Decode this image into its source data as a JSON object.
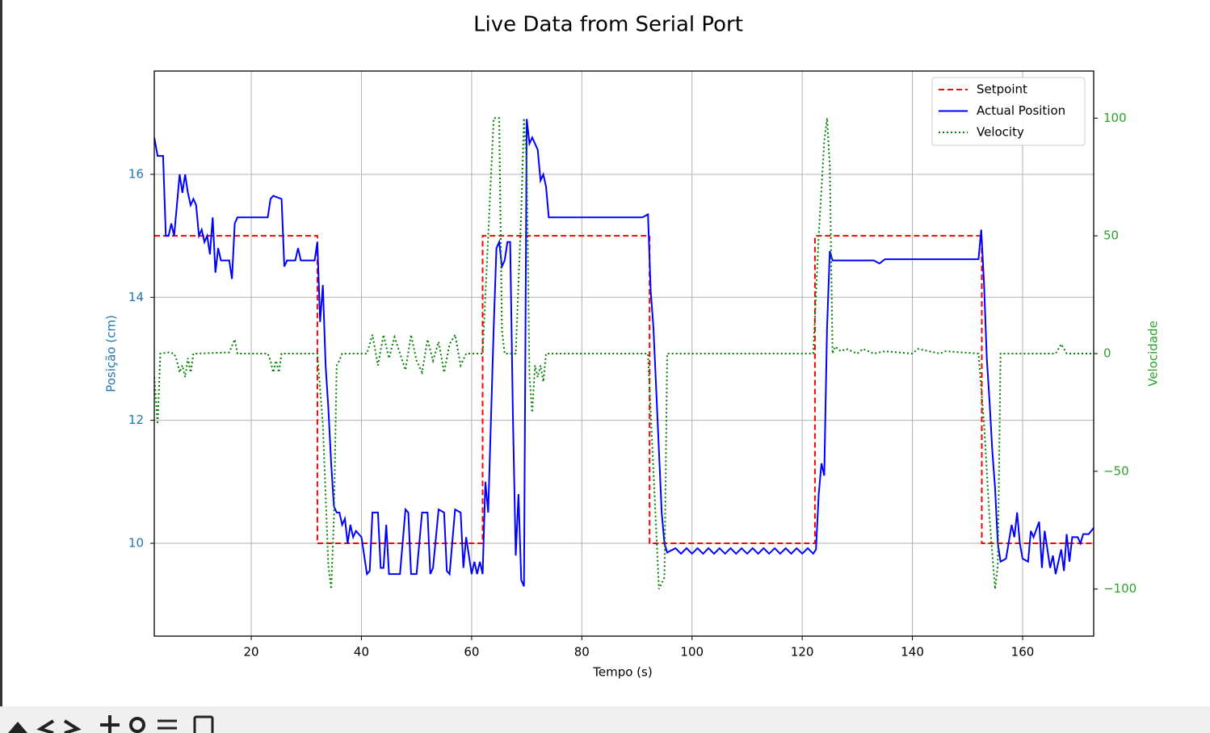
{
  "chart_data": {
    "type": "line",
    "title": "Live Data from Serial Port",
    "xlabel": "Tempo (s)",
    "ylabel": "Posição (cm)",
    "y2label": "Velocidade",
    "ylabel_color": "#1f77b4",
    "y2label_color": "#2ca02c",
    "xlim": [
      2.4,
      172.9
    ],
    "ylim": [
      8.49,
      17.68
    ],
    "y2lim": [
      -120,
      120
    ],
    "xticks": [
      20,
      40,
      60,
      80,
      100,
      120,
      140,
      160
    ],
    "yticks": [
      10,
      12,
      14,
      16
    ],
    "y2ticks": [
      {
        "value": -100,
        "label": "−100"
      },
      {
        "value": -50,
        "label": "−50"
      },
      0,
      50,
      100
    ],
    "grid": true,
    "legend": "upper right",
    "series": [
      {
        "name": "Setpoint",
        "color": "#ff0000",
        "linestyle": "dashed",
        "x": [
          2.4,
          32,
          32,
          62,
          62,
          92.3,
          92.3,
          122.3,
          122.3,
          152.6,
          152.6,
          172.9
        ],
        "values": [
          15,
          15,
          10,
          10,
          15,
          15,
          10,
          10,
          15,
          15,
          10,
          10
        ]
      },
      {
        "name": "Actual Position",
        "color": "#0000ff",
        "linestyle": "solid",
        "x": [
          2.4,
          3,
          4,
          4.5,
          5,
          5.5,
          6,
          7,
          7.5,
          8,
          8.5,
          9,
          9.5,
          10,
          10.5,
          11,
          11.5,
          12,
          12.5,
          13,
          13.5,
          14,
          14.5,
          16,
          16.5,
          17,
          17.5,
          23,
          23.5,
          24,
          25.5,
          26,
          26.5,
          28,
          28.5,
          29,
          31.5,
          32,
          32.5,
          33,
          33.5,
          34,
          34.5,
          35,
          35.5,
          36,
          36.5,
          37,
          37.5,
          38,
          38.5,
          39,
          40,
          41,
          41.5,
          42,
          43,
          43.5,
          44,
          44.5,
          45,
          47,
          48,
          48.5,
          49,
          50,
          51,
          52,
          52.5,
          53,
          54,
          55,
          55.5,
          56,
          57,
          58,
          58.5,
          59,
          60,
          60.5,
          61,
          61.5,
          62,
          62.5,
          63,
          63.5,
          64,
          64.5,
          65,
          65.5,
          66,
          66.5,
          67,
          67.5,
          68,
          68.5,
          69,
          69.5,
          70,
          70.5,
          71,
          72,
          72.5,
          73,
          73.5,
          74,
          91,
          92,
          92.5,
          93,
          93.5,
          94,
          94.5,
          95,
          95.5,
          97,
          98,
          99,
          100,
          101,
          102,
          103,
          104,
          105,
          106,
          107,
          108,
          109,
          110,
          111,
          112,
          113,
          114,
          115,
          116,
          117,
          118,
          119,
          120,
          121,
          122,
          122.5,
          123,
          123.5,
          124,
          124.5,
          125,
          125.5,
          127,
          133,
          134,
          135,
          152,
          152.5,
          153,
          153.5,
          154,
          154.5,
          155,
          155.5,
          156,
          157,
          158,
          158.5,
          159,
          159.5,
          160,
          161,
          161.5,
          162,
          163,
          163.5,
          164,
          165,
          165.5,
          166,
          167,
          167.5,
          168,
          168.5,
          169,
          170,
          170.5,
          171,
          172,
          172.9
        ],
        "values": [
          16.6,
          16.3,
          16.3,
          15.0,
          15.0,
          15.2,
          15.0,
          16.0,
          15.7,
          16.0,
          15.7,
          15.5,
          15.6,
          15.5,
          15.0,
          15.1,
          14.9,
          15.0,
          14.7,
          15.3,
          14.4,
          14.8,
          14.6,
          14.6,
          14.3,
          15.2,
          15.3,
          15.3,
          15.6,
          15.65,
          15.6,
          14.5,
          14.6,
          14.6,
          14.8,
          14.6,
          14.6,
          14.9,
          13.6,
          14.2,
          12.9,
          12.2,
          11.3,
          10.6,
          10.5,
          10.5,
          10.3,
          10.4,
          10.0,
          10.3,
          10.1,
          10.2,
          10.1,
          9.5,
          9.55,
          10.5,
          10.5,
          9.6,
          9.6,
          10.3,
          9.5,
          9.5,
          10.55,
          10.5,
          9.5,
          9.5,
          10.5,
          10.5,
          9.5,
          9.6,
          10.55,
          10.5,
          9.55,
          9.5,
          10.55,
          10.5,
          9.6,
          10.1,
          9.5,
          9.7,
          9.5,
          9.7,
          9.5,
          11.0,
          10.5,
          12.0,
          13.5,
          14.8,
          14.9,
          14.5,
          14.6,
          14.9,
          14.9,
          12.0,
          9.8,
          10.8,
          9.4,
          9.3,
          16.9,
          16.5,
          16.6,
          16.4,
          15.9,
          16.0,
          15.8,
          15.3,
          15.3,
          15.35,
          14.1,
          13.5,
          12.5,
          11.5,
          10.5,
          10.0,
          9.85,
          9.92,
          9.83,
          9.92,
          9.83,
          9.92,
          9.83,
          9.92,
          9.83,
          9.92,
          9.83,
          9.92,
          9.83,
          9.92,
          9.83,
          9.92,
          9.83,
          9.92,
          9.83,
          9.92,
          9.83,
          9.92,
          9.83,
          9.92,
          9.83,
          9.92,
          9.83,
          9.9,
          10.8,
          11.3,
          11.1,
          13.5,
          14.75,
          14.6,
          14.6,
          14.6,
          14.55,
          14.62,
          14.62,
          15.1,
          14.2,
          13.0,
          12.3,
          11.5,
          10.9,
          10.0,
          9.7,
          9.75,
          10.3,
          10.1,
          10.5,
          10.0,
          9.75,
          9.7,
          10.2,
          10.1,
          10.35,
          9.6,
          10.2,
          9.6,
          9.8,
          9.5,
          9.9,
          9.55,
          10.15,
          9.7,
          10.1,
          10.1,
          10.0,
          10.15,
          10.15,
          10.25
        ]
      },
      {
        "name": "Velocity",
        "color": "#008000",
        "linestyle": "dotted",
        "axis": "y2",
        "x": [
          2.4,
          3,
          3.5,
          5,
          6,
          6.5,
          7,
          7.5,
          8,
          8.5,
          9,
          9.5,
          10,
          16,
          17,
          17.5,
          23,
          23.5,
          24,
          24.5,
          25,
          25.5,
          32,
          33,
          34,
          34.5,
          35,
          35.5,
          36,
          36.5,
          41,
          42,
          43,
          44,
          45,
          46,
          47,
          48,
          49,
          50,
          51,
          52,
          53,
          54,
          55,
          56,
          57,
          58,
          59,
          62,
          63,
          64,
          65,
          65.5,
          66,
          68,
          69,
          69.5,
          70,
          70.5,
          71,
          71.5,
          72,
          72.5,
          73,
          73.5,
          92,
          93,
          94,
          95,
          95.5,
          122,
          123,
          124,
          124.5,
          125,
          125.5,
          126,
          127,
          128,
          130,
          131,
          133,
          135,
          140,
          141,
          145,
          146,
          152,
          153,
          154,
          155,
          155.5,
          156,
          166,
          167,
          168,
          172.9
        ],
        "values": [
          -10,
          -30,
          0,
          0.5,
          0,
          -3,
          -8,
          -5,
          -10,
          -2,
          -8,
          0,
          0,
          0.5,
          6,
          0,
          0,
          -3,
          -8,
          -3,
          -8,
          0,
          0,
          -30,
          -90,
          -100,
          -70,
          -5,
          -3,
          0,
          0,
          8,
          -5,
          8,
          -2,
          7,
          0,
          -7,
          8,
          -3,
          -8,
          6,
          -3,
          5,
          -8,
          4,
          8,
          -5,
          0,
          0,
          50,
          100,
          100,
          10,
          0,
          0,
          60,
          100,
          80,
          -10,
          -25,
          -5,
          -10,
          -5,
          -12,
          0,
          0,
          -50,
          -100,
          -95,
          0,
          0,
          50,
          90,
          100,
          80,
          0,
          3,
          1,
          2,
          0,
          2,
          0,
          1,
          0,
          2,
          0,
          1,
          0,
          -30,
          -70,
          -100,
          -90,
          0,
          0,
          4,
          0,
          0
        ]
      }
    ]
  }
}
